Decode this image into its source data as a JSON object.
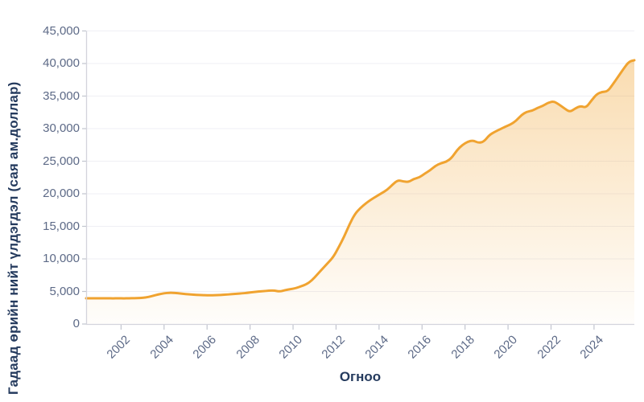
{
  "chart_data": {
    "type": "area",
    "title": "",
    "xlabel": "Огноо",
    "ylabel": "Гадаад өрийн нийт үлдэгдэл (сая ам.доллар)",
    "legend_position": "none",
    "grid": "horizontal",
    "ylim": [
      0,
      45000
    ],
    "y_tick_step": 5000,
    "y_tick_labels": [
      "0",
      "5,000",
      "10,000",
      "15,000",
      "20,000",
      "25,000",
      "30,000",
      "35,000",
      "40,000",
      "45,000"
    ],
    "x_tick_labels": [
      "2002",
      "2004",
      "2006",
      "2008",
      "2010",
      "2012",
      "2014",
      "2016",
      "2018",
      "2020",
      "2022",
      "2024"
    ],
    "x_tick_years": [
      2002,
      2004,
      2006,
      2008,
      2010,
      2012,
      2014,
      2016,
      2018,
      2020,
      2022,
      2024
    ],
    "xlim_years": [
      2000.375,
      2025.875
    ],
    "series": [
      {
        "name": "Гадаад өрийн нийт үлдэгдэл",
        "unit": "сая ам.доллар",
        "frequency": "quarterly",
        "start": "2000-Q2",
        "end": "2025-Q4",
        "values": [
          3950,
          3940,
          3950,
          3960,
          3950,
          3940,
          3950,
          3940,
          3950,
          3970,
          4000,
          4060,
          4230,
          4460,
          4650,
          4780,
          4800,
          4730,
          4640,
          4570,
          4500,
          4460,
          4430,
          4410,
          4430,
          4470,
          4520,
          4570,
          4650,
          4710,
          4780,
          4900,
          4980,
          5050,
          5120,
          5150,
          4980,
          5200,
          5350,
          5500,
          5800,
          6100,
          6700,
          7600,
          8500,
          9400,
          10300,
          11800,
          13400,
          15300,
          16900,
          17800,
          18500,
          19100,
          19600,
          20100,
          20600,
          21400,
          22100,
          21900,
          21800,
          22300,
          22500,
          23100,
          23600,
          24300,
          24700,
          24900,
          25500,
          26700,
          27500,
          28000,
          28200,
          27800,
          28000,
          29000,
          29500,
          29900,
          30300,
          30650,
          31200,
          32100,
          32600,
          32750,
          33200,
          33500,
          34000,
          34200,
          33700,
          33100,
          32550,
          33100,
          33500,
          33200,
          34300,
          35300,
          35650,
          35700,
          36800,
          38000,
          39200,
          40300,
          40500
        ]
      }
    ],
    "colors": {
      "line": "#F0A330",
      "fill_top": "rgba(240,163,48,0.42)",
      "fill_bottom": "rgba(240,163,48,0.02)",
      "gridline": "#EFEFF4",
      "axis_line": "#D4D4DC",
      "tick_mark": "#C2C5CF",
      "tick_label": "#5D6A87",
      "axis_title": "#253B5E",
      "background": "#FFFFFF"
    }
  }
}
